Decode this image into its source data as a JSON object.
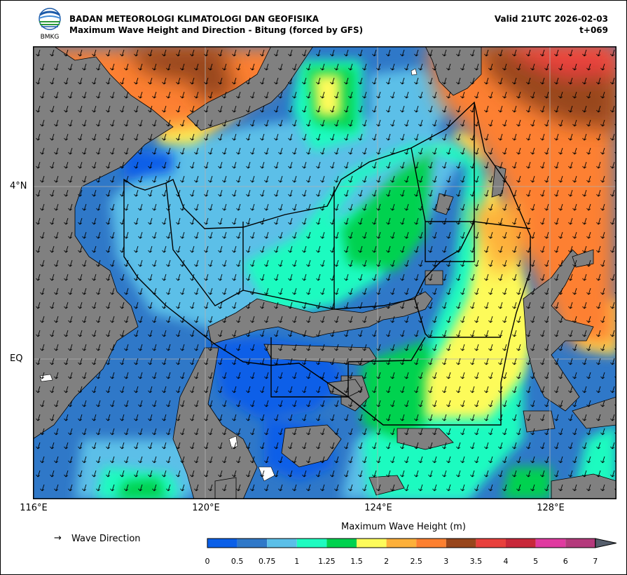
{
  "agency": {
    "logo_text": "BMKG",
    "name": "BADAN METEOROLOGI KLIMATOLOGI DAN GEOFISIKA"
  },
  "product": {
    "title": "Maximum Wave Height and Direction - Bitung (forced by GFS)",
    "valid": "Valid 21UTC 2026-02-03",
    "forecast_hour": "t+069"
  },
  "map": {
    "lat_labels": [
      "4°N",
      "EQ"
    ],
    "lon_labels": [
      "116°E",
      "120°E",
      "124°E",
      "128°E"
    ],
    "colors": {
      "land": "#808080",
      "frame": "#000000",
      "gridline": "#b0b0b0"
    }
  },
  "legend": {
    "direction_symbol": "→",
    "direction_label": "Wave Direction",
    "colorbar_title": "Maximum Wave Height (m)",
    "ticks": [
      "0",
      "0.5",
      "0.75",
      "1",
      "1.25",
      "1.5",
      "2",
      "2.5",
      "3",
      "3.5",
      "4",
      "5",
      "6",
      "7"
    ],
    "colors": [
      "#0a5fe8",
      "#2f78c8",
      "#5bbfe8",
      "#1ffbc0",
      "#00d24f",
      "#fdfb5a",
      "#fdb03a",
      "#fd8030",
      "#98461c",
      "#e8403c",
      "#c8283a",
      "#e03aa0",
      "#b43a7c",
      "#555e6c"
    ]
  }
}
